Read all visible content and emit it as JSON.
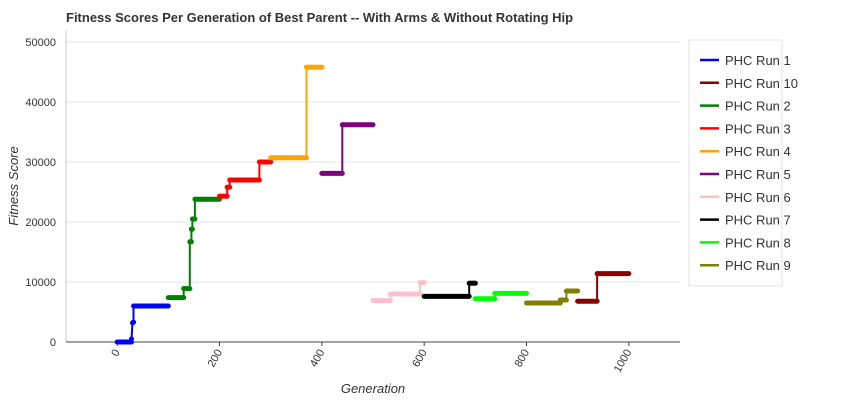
{
  "chart_data": {
    "type": "line",
    "title": "Fitness Scores Per Generation of Best Parent -- With Arms & Without Rotating Hip",
    "xlabel": "Generation",
    "ylabel": "Fitness Score",
    "xlim": [
      -100,
      1100
    ],
    "ylim": [
      0,
      52000
    ],
    "x_ticks": [
      0,
      200,
      400,
      600,
      800,
      1000
    ],
    "y_ticks": [
      0,
      10000,
      20000,
      30000,
      40000,
      50000
    ],
    "grid": "horizontal",
    "legend_position": "right",
    "series": [
      {
        "name": "PHC Run 1",
        "color": "#0000ff",
        "points": [
          [
            0,
            0
          ],
          [
            28,
            0
          ],
          [
            28,
            500
          ],
          [
            30,
            3200
          ],
          [
            32,
            3300
          ],
          [
            32,
            6000
          ],
          [
            100,
            6000
          ]
        ]
      },
      {
        "name": "PHC Run 10",
        "color": "#8b0000",
        "points": [
          [
            900,
            6800
          ],
          [
            938,
            6800
          ],
          [
            938,
            11400
          ],
          [
            1000,
            11400
          ]
        ]
      },
      {
        "name": "PHC Run 2",
        "color": "#008000",
        "points": [
          [
            100,
            7400
          ],
          [
            130,
            7400
          ],
          [
            130,
            8900
          ],
          [
            142,
            8900
          ],
          [
            142,
            16700
          ],
          [
            145,
            16700
          ],
          [
            145,
            18800
          ],
          [
            147,
            18800
          ],
          [
            147,
            20500
          ],
          [
            152,
            20500
          ],
          [
            152,
            23800
          ],
          [
            200,
            23800
          ]
        ]
      },
      {
        "name": "PHC Run 3",
        "color": "#ff0000",
        "points": [
          [
            200,
            24300
          ],
          [
            215,
            24300
          ],
          [
            215,
            25800
          ],
          [
            220,
            25800
          ],
          [
            220,
            27000
          ],
          [
            278,
            27000
          ],
          [
            278,
            30000
          ],
          [
            300,
            30000
          ]
        ]
      },
      {
        "name": "PHC Run 4",
        "color": "#ffa500",
        "points": [
          [
            300,
            30700
          ],
          [
            370,
            30700
          ],
          [
            370,
            45800
          ],
          [
            400,
            45800
          ]
        ]
      },
      {
        "name": "PHC Run 5",
        "color": "#800080",
        "points": [
          [
            400,
            28100
          ],
          [
            440,
            28100
          ],
          [
            440,
            36200
          ],
          [
            500,
            36200
          ]
        ]
      },
      {
        "name": "PHC Run 6",
        "color": "#ffc0cb",
        "points": [
          [
            500,
            6900
          ],
          [
            534,
            6900
          ],
          [
            534,
            8000
          ],
          [
            592,
            8000
          ],
          [
            592,
            9900
          ],
          [
            600,
            9900
          ]
        ]
      },
      {
        "name": "PHC Run 7",
        "color": "#000000",
        "points": [
          [
            600,
            7600
          ],
          [
            688,
            7600
          ],
          [
            688,
            9800
          ],
          [
            700,
            9800
          ]
        ]
      },
      {
        "name": "PHC Run 8",
        "color": "#00ff00",
        "points": [
          [
            700,
            7200
          ],
          [
            738,
            7200
          ],
          [
            738,
            8100
          ],
          [
            800,
            8100
          ]
        ]
      },
      {
        "name": "PHC Run 9",
        "color": "#808000",
        "points": [
          [
            800,
            6500
          ],
          [
            866,
            6500
          ],
          [
            866,
            7000
          ],
          [
            878,
            7000
          ],
          [
            878,
            8500
          ],
          [
            900,
            8500
          ]
        ]
      }
    ]
  }
}
